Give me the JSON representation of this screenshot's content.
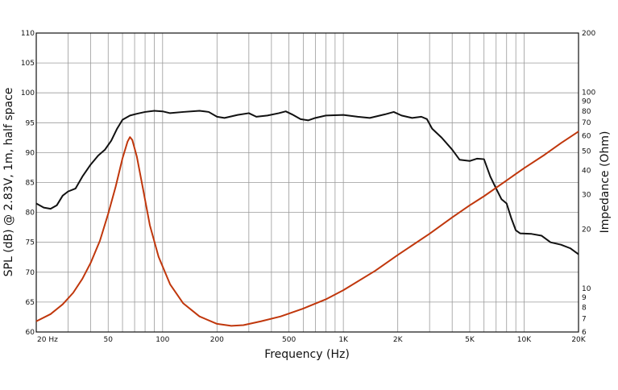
{
  "chart_data": {
    "type": "line",
    "xlabel": "Frequency (Hz)",
    "ylabel": "SPL (dB) @ 2.83V, 1m, half space",
    "y2label": "Impedance (Ohm)",
    "xscale": "log",
    "xlim": [
      20,
      20000
    ],
    "ylim": [
      60,
      110
    ],
    "y2scale": "log",
    "y2lim": [
      6,
      200
    ],
    "grid": true,
    "x_ticks": [
      {
        "value": 20,
        "label": "20  Hz"
      },
      {
        "value": 50,
        "label": "50"
      },
      {
        "value": 100,
        "label": "100"
      },
      {
        "value": 200,
        "label": "200"
      },
      {
        "value": 500,
        "label": "500"
      },
      {
        "value": 1000,
        "label": "1K"
      },
      {
        "value": 2000,
        "label": "2K"
      },
      {
        "value": 5000,
        "label": "5K"
      },
      {
        "value": 10000,
        "label": "10K"
      },
      {
        "value": 20000,
        "label": "20K"
      }
    ],
    "y_ticks": [
      {
        "value": 60,
        "label": "60"
      },
      {
        "value": 65,
        "label": "65"
      },
      {
        "value": 70,
        "label": "70"
      },
      {
        "value": 75,
        "label": "75"
      },
      {
        "value": 80,
        "label": "80"
      },
      {
        "value": 85,
        "label": "85"
      },
      {
        "value": 90,
        "label": "90"
      },
      {
        "value": 95,
        "label": "95"
      },
      {
        "value": 100,
        "label": "100"
      },
      {
        "value": 105,
        "label": "105"
      },
      {
        "value": 110,
        "label": "110"
      }
    ],
    "y2_ticks": [
      {
        "value": 6,
        "label": "6"
      },
      {
        "value": 7,
        "label": "7"
      },
      {
        "value": 8,
        "label": "8"
      },
      {
        "value": 9,
        "label": "9"
      },
      {
        "value": 10,
        "label": "10"
      },
      {
        "value": 20,
        "label": "20"
      },
      {
        "value": 30,
        "label": "30"
      },
      {
        "value": 40,
        "label": "40"
      },
      {
        "value": 50,
        "label": "50"
      },
      {
        "value": 60,
        "label": "60"
      },
      {
        "value": 70,
        "label": "70"
      },
      {
        "value": 80,
        "label": "80"
      },
      {
        "value": 90,
        "label": "90"
      },
      {
        "value": 100,
        "label": "100"
      },
      {
        "value": 200,
        "label": "200"
      }
    ],
    "series": [
      {
        "axis": "left",
        "color": "#111111",
        "points": [
          [
            20,
            81.5
          ],
          [
            22,
            80.8
          ],
          [
            24,
            80.6
          ],
          [
            26,
            81.2
          ],
          [
            28,
            82.8
          ],
          [
            30,
            83.5
          ],
          [
            33,
            84.0
          ],
          [
            36,
            86.0
          ],
          [
            40,
            88.0
          ],
          [
            44,
            89.5
          ],
          [
            48,
            90.5
          ],
          [
            52,
            92.0
          ],
          [
            56,
            94.0
          ],
          [
            60,
            95.5
          ],
          [
            66,
            96.2
          ],
          [
            72,
            96.5
          ],
          [
            80,
            96.8
          ],
          [
            90,
            97.0
          ],
          [
            100,
            96.9
          ],
          [
            110,
            96.6
          ],
          [
            130,
            96.8
          ],
          [
            160,
            97.0
          ],
          [
            180,
            96.8
          ],
          [
            200,
            96.0
          ],
          [
            220,
            95.8
          ],
          [
            260,
            96.3
          ],
          [
            300,
            96.6
          ],
          [
            330,
            96.0
          ],
          [
            380,
            96.2
          ],
          [
            440,
            96.6
          ],
          [
            480,
            96.9
          ],
          [
            520,
            96.4
          ],
          [
            580,
            95.6
          ],
          [
            640,
            95.4
          ],
          [
            700,
            95.8
          ],
          [
            800,
            96.2
          ],
          [
            1000,
            96.3
          ],
          [
            1200,
            96.0
          ],
          [
            1400,
            95.8
          ],
          [
            1700,
            96.4
          ],
          [
            1900,
            96.8
          ],
          [
            2100,
            96.2
          ],
          [
            2400,
            95.8
          ],
          [
            2700,
            96.0
          ],
          [
            2900,
            95.6
          ],
          [
            3100,
            94.0
          ],
          [
            3500,
            92.5
          ],
          [
            4000,
            90.5
          ],
          [
            4400,
            88.8
          ],
          [
            5000,
            88.6
          ],
          [
            5500,
            89.0
          ],
          [
            6000,
            88.9
          ],
          [
            6500,
            86.0
          ],
          [
            7000,
            84.0
          ],
          [
            7500,
            82.2
          ],
          [
            8000,
            81.5
          ],
          [
            8500,
            79.0
          ],
          [
            9000,
            77.0
          ],
          [
            9500,
            76.5
          ],
          [
            11000,
            76.4
          ],
          [
            12500,
            76.1
          ],
          [
            14000,
            75.0
          ],
          [
            16000,
            74.6
          ],
          [
            18000,
            74.0
          ],
          [
            20000,
            73.0
          ]
        ]
      },
      {
        "axis": "right",
        "color": "#c0370c",
        "points": [
          [
            20,
            6.8
          ],
          [
            24,
            7.4
          ],
          [
            28,
            8.3
          ],
          [
            32,
            9.5
          ],
          [
            36,
            11.2
          ],
          [
            40,
            13.5
          ],
          [
            45,
            17.5
          ],
          [
            50,
            24.0
          ],
          [
            55,
            33.0
          ],
          [
            60,
            46.0
          ],
          [
            64,
            56.0
          ],
          [
            66,
            59.0
          ],
          [
            68,
            57.0
          ],
          [
            72,
            47.0
          ],
          [
            78,
            32.0
          ],
          [
            85,
            21.0
          ],
          [
            95,
            14.5
          ],
          [
            110,
            10.5
          ],
          [
            130,
            8.4
          ],
          [
            160,
            7.2
          ],
          [
            200,
            6.6
          ],
          [
            240,
            6.45
          ],
          [
            280,
            6.5
          ],
          [
            350,
            6.8
          ],
          [
            450,
            7.2
          ],
          [
            600,
            7.9
          ],
          [
            800,
            8.8
          ],
          [
            1000,
            9.8
          ],
          [
            1500,
            12.3
          ],
          [
            2000,
            14.8
          ],
          [
            3000,
            19.0
          ],
          [
            4000,
            23.0
          ],
          [
            5000,
            26.5
          ],
          [
            6000,
            29.5
          ],
          [
            8000,
            35.5
          ],
          [
            10000,
            41.0
          ],
          [
            13000,
            48.0
          ],
          [
            16000,
            55.0
          ],
          [
            20000,
            63.0
          ]
        ]
      }
    ]
  }
}
